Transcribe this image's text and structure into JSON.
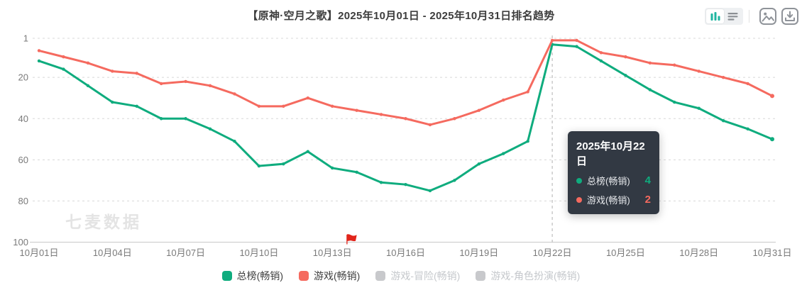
{
  "header": {
    "title": "【原神·空月之歌】2025年10月01日 - 2025年10月31日排名趋势"
  },
  "toolbar": {
    "icons": [
      {
        "name": "bar-chart-icon",
        "active": true
      },
      {
        "name": "table-list-icon",
        "active": false
      },
      {
        "name": "export-image-icon"
      },
      {
        "name": "download-icon"
      }
    ],
    "accent_color": "#1fb5a0"
  },
  "watermark": "七麦数据",
  "chart_data": {
    "type": "line",
    "title": "【原神·空月之歌】2025年10月01日 - 2025年10月31日排名趋势",
    "y_axis": {
      "inverted": true,
      "ticks": [
        1,
        20,
        40,
        60,
        80,
        100
      ],
      "range": [
        1,
        100
      ],
      "grid": "dashed",
      "meaning": "ranking (1 = best)"
    },
    "x_axis": {
      "num_points": 31,
      "tick_days": [
        1,
        4,
        7,
        10,
        13,
        16,
        19,
        22,
        25,
        28,
        31
      ],
      "tick_labels": [
        "10月01日",
        "10月04日",
        "10月07日",
        "10月10日",
        "10月13日",
        "10月16日",
        "10月19日",
        "10月22日",
        "10月25日",
        "10月28日",
        "10月31日"
      ]
    },
    "series": [
      {
        "key": "overall-bestselling",
        "name": "总榜(畅销)",
        "color": "#0fac7e",
        "active": true,
        "values": [
          12,
          16,
          24,
          32,
          34,
          40,
          40,
          45,
          51,
          63,
          62,
          56,
          64,
          66,
          71,
          72,
          75,
          70,
          62,
          57,
          51,
          4,
          5,
          12,
          19,
          26,
          32,
          35,
          41,
          45,
          50
        ]
      },
      {
        "key": "game-bestselling",
        "name": "游戏(畅销)",
        "color": "#f56a5f",
        "active": true,
        "values": [
          7,
          10,
          13,
          17,
          18,
          23,
          22,
          24,
          28,
          34,
          34,
          30,
          34,
          36,
          38,
          40,
          43,
          40,
          36,
          31,
          27,
          2,
          2,
          8,
          10,
          13,
          14,
          17,
          20,
          23,
          29
        ]
      },
      {
        "key": "game-adventure-bestselling",
        "name": "游戏-冒险(畅销)",
        "color": "#c8c9cc",
        "active": false,
        "values": []
      },
      {
        "key": "game-rpg-bestselling",
        "name": "游戏-角色扮演(畅销)",
        "color": "#c8c9cc",
        "active": false,
        "values": []
      }
    ],
    "tooltip": {
      "date": "2025年10月22日",
      "day": 22,
      "rows": [
        {
          "name": "总榜(畅销)",
          "value": 4,
          "color": "#0fac7e"
        },
        {
          "name": "游戏(畅销)",
          "value": 2,
          "color": "#f56a5f"
        }
      ]
    },
    "flag_marker": {
      "day": 13.6,
      "color": "#e1251b"
    },
    "legend_position": "bottom"
  }
}
